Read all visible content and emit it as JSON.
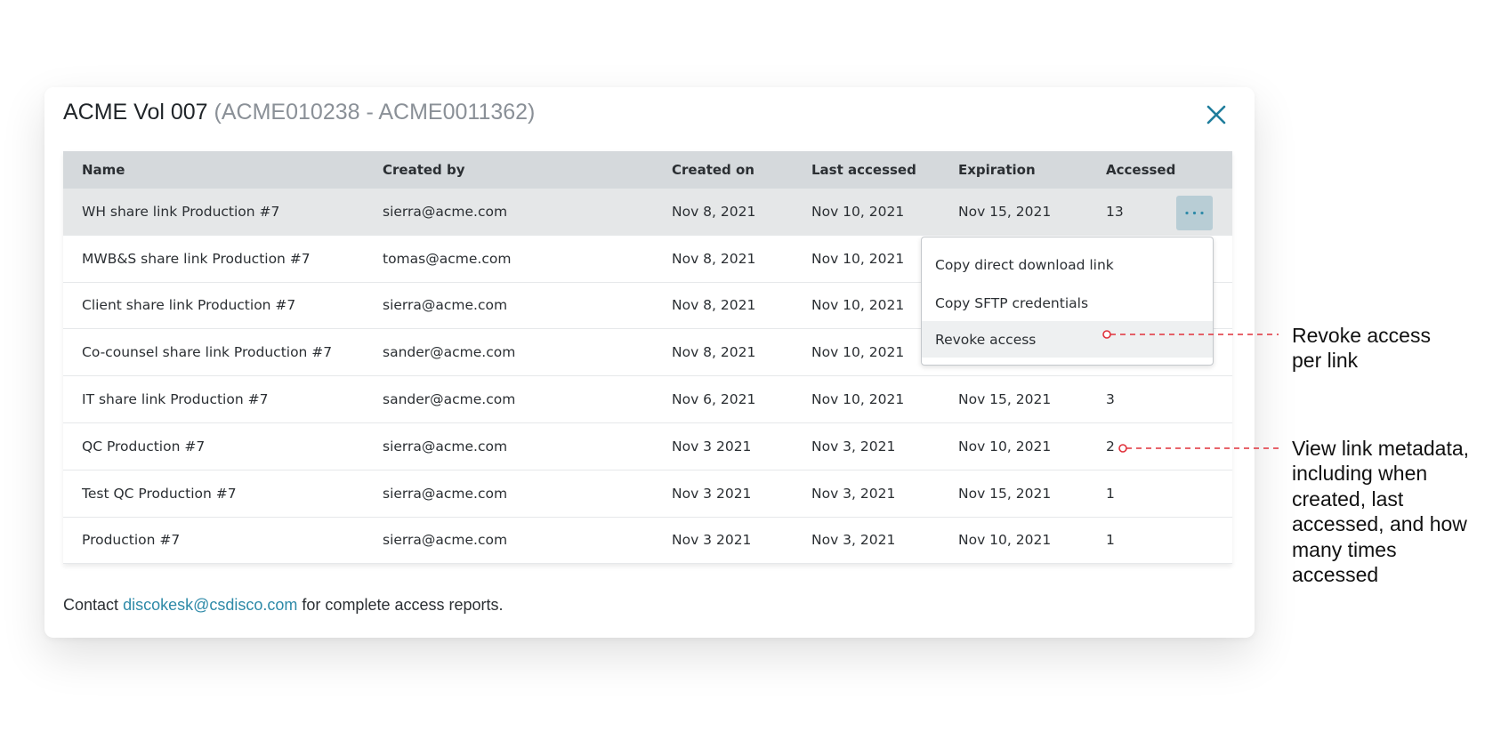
{
  "modal": {
    "title": "ACME Vol 007",
    "subtitle": "(ACME010238 - ACME0011362)",
    "table": {
      "columns": [
        "Name",
        "Created by",
        "Created on",
        "Last accessed",
        "Expiration",
        "Accessed"
      ],
      "rows": [
        [
          "WH share link Production #7",
          "sierra@acme.com",
          "Nov 8, 2021",
          "Nov 10, 2021",
          "Nov 15, 2021",
          "13"
        ],
        [
          "MWB&S share link Production #7",
          "tomas@acme.com",
          "Nov 8, 2021",
          "Nov 10, 2021",
          "",
          ""
        ],
        [
          "Client share link Production #7",
          "sierra@acme.com",
          "Nov 8, 2021",
          "Nov 10, 2021",
          "",
          ""
        ],
        [
          "Co-counsel share link Production #7",
          "sander@acme.com",
          "Nov 8, 2021",
          "Nov 10, 2021",
          "",
          ""
        ],
        [
          "IT share link Production #7",
          "sander@acme.com",
          "Nov 6, 2021",
          "Nov 10, 2021",
          "Nov 15, 2021",
          "3"
        ],
        [
          "QC Production #7",
          "sierra@acme.com",
          "Nov 3 2021",
          "Nov 3, 2021",
          "Nov 10, 2021",
          "2"
        ],
        [
          "Test QC Production #7",
          "sierra@acme.com",
          "Nov 3 2021",
          "Nov 3, 2021",
          "Nov 15, 2021",
          "1"
        ],
        [
          "Production #7",
          "sierra@acme.com",
          "Nov 3 2021",
          "Nov 3, 2021",
          "Nov 10, 2021",
          "1"
        ]
      ]
    },
    "menu": [
      "Copy direct download link",
      "Copy SFTP credentials",
      "Revoke access"
    ],
    "footer": {
      "before": "Contact",
      "email": "discokesk@csdisco.com",
      "after": "for complete access reports."
    }
  },
  "annotations": [
    [
      "Revoke access",
      "per link"
    ],
    [
      "View link metadata,",
      "including when",
      "created, last",
      "accessed, and how",
      "many times",
      "accessed"
    ]
  ]
}
